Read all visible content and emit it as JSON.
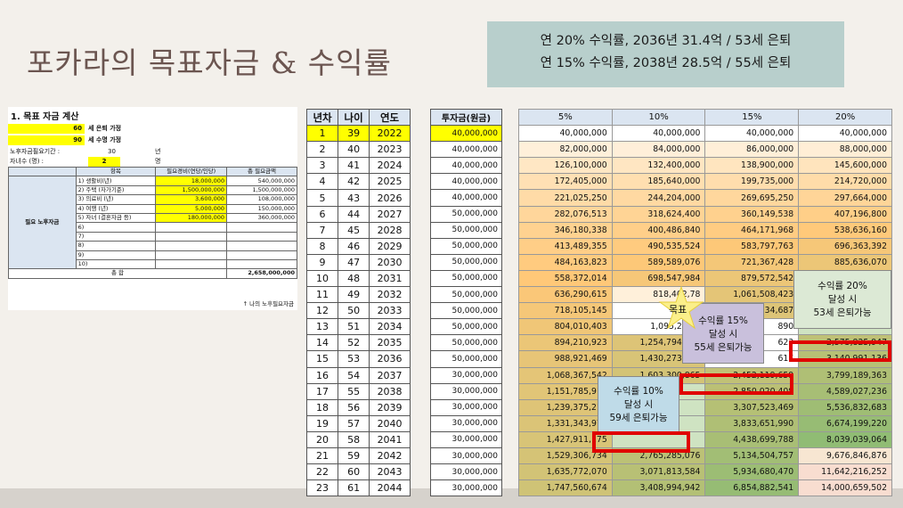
{
  "slide": {
    "title": "포카라의 목표자금 & 수익률",
    "callout_line1": "연 20% 수익률, 2036년 31.4억 / 53세 은퇴",
    "callout_line2": "연 15%  수익률, 2038년 28.5억 / 55세 은퇴"
  },
  "goal_table": {
    "title": "1. 목표 자금 계산",
    "retire_age": "60",
    "retire_label": "세 은퇴 가정",
    "life_age": "90",
    "life_label": "세 수명 가정",
    "period_label": "노후자금필요기간 :",
    "period_value": "30",
    "period_unit": "년",
    "children_label": "자녀수 (명) :",
    "children_value": "2",
    "children_unit": "명",
    "col_item": "항목",
    "col_cost": "필요경비(연당/인당)",
    "col_total": "총 필요금액",
    "group_label": "필요 노후자금",
    "rows": [
      {
        "item": "1) 생활비(년)",
        "cost": "18,000,000",
        "total": "540,000,000"
      },
      {
        "item": "2) 주택 (자가기준)",
        "cost": "1,500,000,000",
        "total": "1,500,000,000"
      },
      {
        "item": "3) 의료비 (년)",
        "cost": "3,600,000",
        "total": "108,000,000"
      },
      {
        "item": "4) 여행 (년)",
        "cost": "5,000,000",
        "total": "150,000,000"
      },
      {
        "item": "5) 자녀 (결혼자금 등)",
        "cost": "180,000,000",
        "total": "360,000,000"
      },
      {
        "item": "6)",
        "cost": "",
        "total": ""
      },
      {
        "item": "7)",
        "cost": "",
        "total": ""
      },
      {
        "item": "8)",
        "cost": "",
        "total": ""
      },
      {
        "item": "9)",
        "cost": "",
        "total": ""
      },
      {
        "item": "10)",
        "cost": "",
        "total": ""
      }
    ],
    "sum_label": "총 합",
    "sum_value": "2,658,000,000",
    "footnote": "↑ 나의 노후필요자금"
  },
  "year_table": {
    "headers": [
      "년차",
      "나이",
      "연도"
    ],
    "rows": [
      [
        "1",
        "39",
        "2022"
      ],
      [
        "2",
        "40",
        "2023"
      ],
      [
        "3",
        "41",
        "2024"
      ],
      [
        "4",
        "42",
        "2025"
      ],
      [
        "5",
        "43",
        "2026"
      ],
      [
        "6",
        "44",
        "2027"
      ],
      [
        "7",
        "45",
        "2028"
      ],
      [
        "8",
        "46",
        "2029"
      ],
      [
        "9",
        "47",
        "2030"
      ],
      [
        "10",
        "48",
        "2031"
      ],
      [
        "11",
        "49",
        "2032"
      ],
      [
        "12",
        "50",
        "2033"
      ],
      [
        "13",
        "51",
        "2034"
      ],
      [
        "14",
        "52",
        "2035"
      ],
      [
        "15",
        "53",
        "2036"
      ],
      [
        "16",
        "54",
        "2037"
      ],
      [
        "17",
        "55",
        "2038"
      ],
      [
        "18",
        "56",
        "2039"
      ],
      [
        "19",
        "57",
        "2040"
      ],
      [
        "20",
        "58",
        "2041"
      ],
      [
        "21",
        "59",
        "2042"
      ],
      [
        "22",
        "60",
        "2043"
      ],
      [
        "23",
        "61",
        "2044"
      ]
    ]
  },
  "invest_table": {
    "header": "투자금(원금)",
    "rows": [
      "40,000,000",
      "40,000,000",
      "40,000,000",
      "40,000,000",
      "40,000,000",
      "50,000,000",
      "50,000,000",
      "50,000,000",
      "50,000,000",
      "50,000,000",
      "50,000,000",
      "50,000,000",
      "50,000,000",
      "50,000,000",
      "50,000,000",
      "30,000,000",
      "30,000,000",
      "30,000,000",
      "30,000,000",
      "30,000,000",
      "30,000,000",
      "30,000,000",
      "30,000,000"
    ]
  },
  "return_table": {
    "headers": [
      "5%",
      "10%",
      "15%",
      "20%"
    ],
    "rows": [
      [
        "40,000,000",
        "40,000,000",
        "40,000,000",
        "40,000,000"
      ],
      [
        "82,000,000",
        "84,000,000",
        "86,000,000",
        "88,000,000"
      ],
      [
        "126,100,000",
        "132,400,000",
        "138,900,000",
        "145,600,000"
      ],
      [
        "172,405,000",
        "185,640,000",
        "199,735,000",
        "214,720,000"
      ],
      [
        "221,025,250",
        "244,204,000",
        "269,695,250",
        "297,664,000"
      ],
      [
        "282,076,513",
        "318,624,400",
        "360,149,538",
        "407,196,800"
      ],
      [
        "346,180,338",
        "400,486,840",
        "464,171,968",
        "538,636,160"
      ],
      [
        "413,489,355",
        "490,535,524",
        "583,797,763",
        "696,363,392"
      ],
      [
        "484,163,823",
        "589,589,076",
        "721,367,428",
        "885,636,070"
      ],
      [
        "558,372,014",
        "698,547,984",
        "879,572,542",
        "1,112,763,284"
      ],
      [
        "636,290,615",
        "818,402,78",
        "1,061,508,423",
        ""
      ],
      [
        "718,105,145",
        "950,24",
        "1,270,734,687",
        ""
      ],
      [
        "804,010,403",
        "1,095,267,3",
        "890",
        ""
      ],
      [
        "894,210,923",
        "1,254,794,103",
        "623",
        "2,575,825,947"
      ],
      [
        "988,921,469",
        "1,430,273,514",
        "617",
        "3,140,991,136"
      ],
      [
        "1,068,367,542",
        "1,603,300,865",
        "2,452,119,659",
        "3,799,189,363"
      ],
      [
        "1,151,785,919",
        "",
        "2,850,020,408",
        "4,589,027,236"
      ],
      [
        "1,239,375,215",
        "",
        "3,307,523,469",
        "5,536,832,683"
      ],
      [
        "1,331,343,976",
        "",
        "3,833,651,990",
        "6,674,199,220"
      ],
      [
        "1,427,911,175",
        "",
        "4,438,699,788",
        "8,039,039,064"
      ],
      [
        "1,529,306,734",
        "2,765,285,076",
        "5,134,504,757",
        "9,676,846,876"
      ],
      [
        "1,635,772,070",
        "3,071,813,584",
        "5,934,680,470",
        "11,642,216,252"
      ],
      [
        "1,747,560,674",
        "3,408,994,942",
        "6,854,882,541",
        "14,000,659,502"
      ]
    ]
  },
  "notes": {
    "star_label": "목표",
    "n15": [
      "수익률 15%",
      "달성 시",
      "55세 은퇴가능"
    ],
    "n20": [
      "수익률 20%",
      "달성 시",
      "53세 은퇴가능"
    ],
    "n10": [
      "수익률 10%",
      "달성 시",
      "59세 은퇴가능"
    ]
  },
  "colors": {
    "highlight": "#ffff00",
    "header_blue": "#dbe5f1",
    "red_box": "#e00000",
    "callout_bg": "#b8cfcc"
  }
}
